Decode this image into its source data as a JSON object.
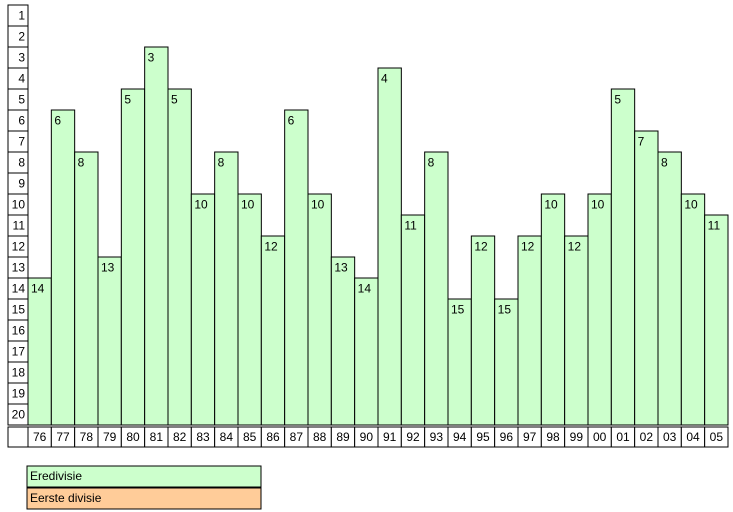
{
  "chart_data": {
    "type": "bar",
    "categories": [
      "76",
      "77",
      "78",
      "79",
      "80",
      "81",
      "82",
      "83",
      "84",
      "85",
      "86",
      "87",
      "88",
      "89",
      "90",
      "91",
      "92",
      "93",
      "94",
      "95",
      "96",
      "97",
      "98",
      "99",
      "00",
      "01",
      "02",
      "03",
      "04",
      "05"
    ],
    "series": [
      {
        "name": "Eredivisie",
        "color": "#ccffcc",
        "values": [
          14,
          6,
          8,
          13,
          5,
          3,
          5,
          10,
          8,
          10,
          12,
          6,
          10,
          13,
          14,
          4,
          11,
          8,
          15,
          12,
          15,
          12,
          10,
          12,
          10,
          5,
          7,
          8,
          10,
          11
        ]
      },
      {
        "name": "Eerste divisie",
        "color": "#ffcc99",
        "values": [
          null,
          null,
          null,
          null,
          null,
          null,
          null,
          null,
          null,
          null,
          null,
          null,
          null,
          null,
          null,
          null,
          null,
          null,
          null,
          null,
          null,
          null,
          null,
          null,
          null,
          null,
          null,
          null,
          null,
          null
        ]
      }
    ],
    "ylim": [
      21,
      1
    ],
    "yticks": [
      1,
      2,
      3,
      4,
      5,
      6,
      7,
      8,
      9,
      10,
      11,
      12,
      13,
      14,
      15,
      16,
      17,
      18,
      19,
      20
    ],
    "grid": false
  }
}
